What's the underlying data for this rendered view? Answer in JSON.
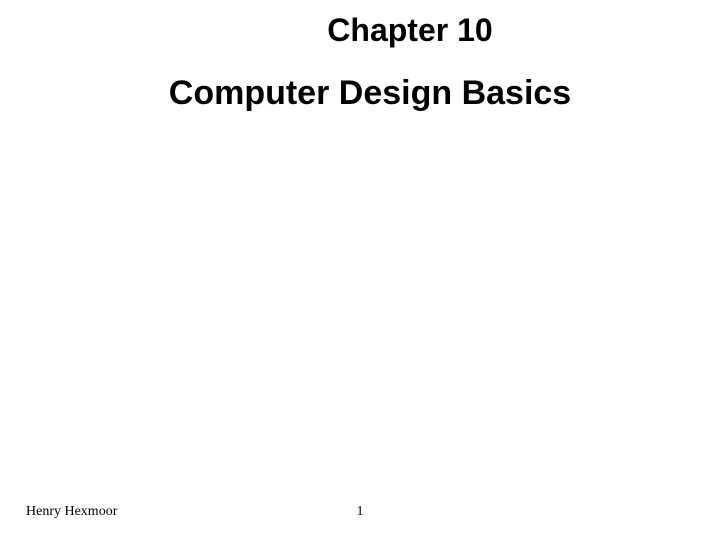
{
  "slide": {
    "chapter": "Chapter 10",
    "title": "Computer Design Basics",
    "author": "Henry Hexmoor",
    "page_number": "1",
    "chapter_fontsize": 32,
    "title_fontsize": 34,
    "footer_fontsize": 14,
    "background_color": "#ffffff",
    "text_color": "#000000",
    "heading_font": "Arial",
    "footer_font": "Times New Roman"
  }
}
